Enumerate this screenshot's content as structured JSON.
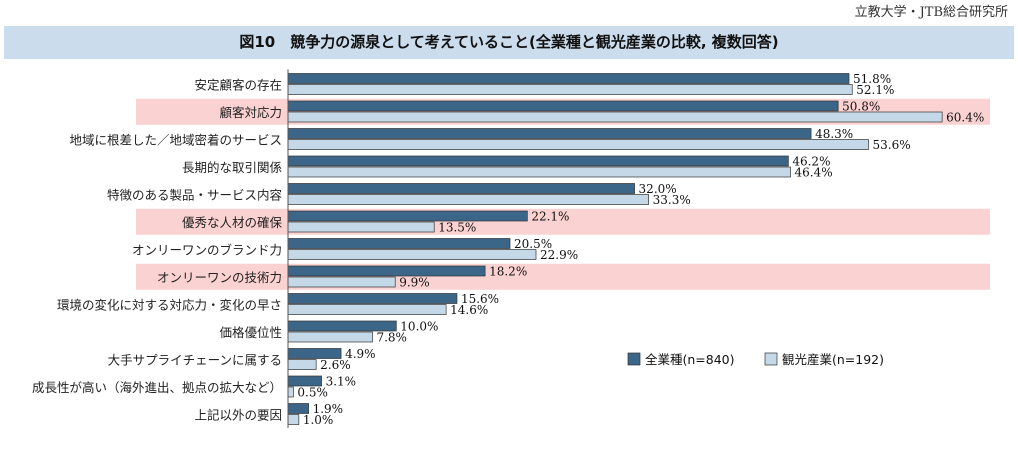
{
  "source": "立教大学・JTB総合研究所",
  "chart_data": {
    "type": "bar",
    "orientation": "horizontal",
    "title": "図10　競争力の源泉として考えていること(全業種と観光産業の比較, 複数回答)",
    "categories": [
      "安定顧客の存在",
      "顧客対応力",
      "地域に根差した／地域密着のサービス",
      "長期的な取引関係",
      "特徴のある製品・サービス内容",
      "優秀な人材の確保",
      "オンリーワンのブランド力",
      "オンリーワンの技術力",
      "環境の変化に対する対応力・変化の早さ",
      "価格優位性",
      "大手サプライチェーンに属する",
      "成長性が高い（海外進出、拠点の拡大など）",
      "上記以外の要因"
    ],
    "highlighted": [
      "顧客対応力",
      "優秀な人材の確保",
      "オンリーワンの技術力"
    ],
    "series": [
      {
        "name": "全業種(n=840)",
        "color": "#3b6688",
        "values": [
          51.8,
          50.8,
          48.3,
          46.2,
          32.0,
          22.1,
          20.5,
          18.2,
          15.6,
          10.0,
          4.9,
          3.1,
          1.9
        ]
      },
      {
        "name": "観光産業(n=192)",
        "color": "#c5d8e8",
        "values": [
          52.1,
          60.4,
          53.6,
          46.4,
          33.3,
          13.5,
          22.9,
          9.9,
          14.6,
          7.8,
          2.6,
          0.5,
          1.0
        ]
      }
    ],
    "value_format": "%",
    "xlim": [
      0,
      70
    ],
    "legend": "lower-right",
    "highlight_color": "#fbd2d2"
  }
}
